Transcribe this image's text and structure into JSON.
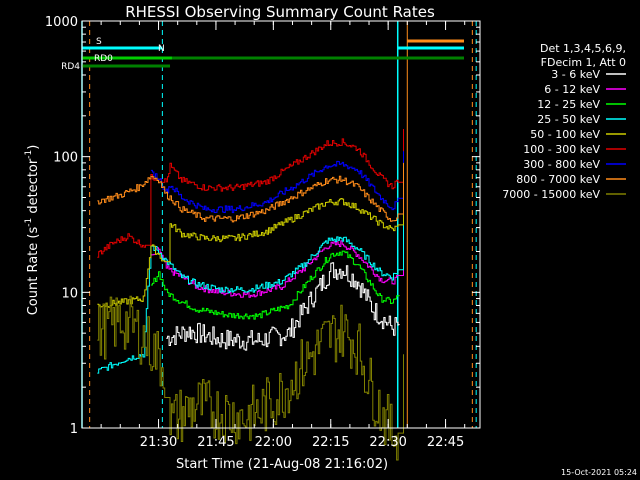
{
  "chart_data": {
    "type": "line",
    "title": "RHESSI Observing Summary Count Rates",
    "xlabel": "Start Time (21-Aug-08 21:16:02)",
    "ylabel_main": "Count Rate (s",
    "ylabel_sup1": "-1",
    "ylabel_mid": " detector",
    "ylabel_sup2": "-1",
    "ylabel_end": ")",
    "yscale": "log",
    "ylim": [
      1,
      1000
    ],
    "xlim_minutes": [
      -6,
      98
    ],
    "x_ticks": [
      {
        "label": "21:30",
        "m": 14
      },
      {
        "label": "21:45",
        "m": 29
      },
      {
        "label": "22:00",
        "m": 44
      },
      {
        "label": "22:15",
        "m": 59
      },
      {
        "label": "22:30",
        "m": 74
      },
      {
        "label": "22:45",
        "m": 89
      }
    ],
    "y_ticks": [
      {
        "label": "1",
        "v": 1
      },
      {
        "label": "10",
        "v": 10
      },
      {
        "label": "100",
        "v": 100
      },
      {
        "label": "1000",
        "v": 1000
      }
    ],
    "legend_header": [
      "Det 1,3,4,5,6,9,",
      "FDecim 1, Att 0"
    ],
    "timestamp": "15-Oct-2021 05:24",
    "flags": [
      {
        "name": "S",
        "color": "#ff8c1a"
      },
      {
        "name": "N",
        "color": "#00ffff"
      },
      {
        "name": "RD0",
        "color": "#00cc00"
      },
      {
        "name": "RD4",
        "color": "#008000"
      }
    ],
    "series": [
      {
        "name": "3 - 6 keV",
        "color": "#ffffff",
        "points": [
          [
            16,
            4.6
          ],
          [
            22,
            5.2
          ],
          [
            30,
            4.5
          ],
          [
            40,
            4.4
          ],
          [
            48,
            5.0
          ],
          [
            54,
            9.0
          ],
          [
            59,
            14.5
          ],
          [
            62,
            15.0
          ],
          [
            66,
            12.0
          ],
          [
            70,
            7.5
          ],
          [
            75,
            5.5
          ],
          [
            77,
            5.8
          ]
        ]
      },
      {
        "name": "6 - 12 keV",
        "color": "#ff00ff",
        "points": [
          [
            12,
            18
          ],
          [
            14,
            21
          ],
          [
            16,
            15
          ],
          [
            20,
            13
          ],
          [
            24,
            11
          ],
          [
            30,
            10
          ],
          [
            38,
            9.6
          ],
          [
            46,
            11
          ],
          [
            52,
            15
          ],
          [
            58,
            22
          ],
          [
            62,
            23
          ],
          [
            66,
            19
          ],
          [
            72,
            12.5
          ],
          [
            75,
            12
          ],
          [
            77,
            13
          ],
          [
            78,
            70
          ]
        ]
      },
      {
        "name": "12 - 25 keV",
        "color": "#00ff00",
        "points": [
          [
            12,
            11
          ],
          [
            14,
            14
          ],
          [
            16,
            10
          ],
          [
            20,
            8.5
          ],
          [
            24,
            7.5
          ],
          [
            32,
            6.8
          ],
          [
            40,
            6.7
          ],
          [
            48,
            8.0
          ],
          [
            54,
            13
          ],
          [
            59,
            19
          ],
          [
            62,
            20
          ],
          [
            66,
            16
          ],
          [
            72,
            9
          ],
          [
            75,
            8.5
          ],
          [
            77,
            9.5
          ]
        ]
      },
      {
        "name": "25 - 50 keV",
        "color": "#00ffff",
        "points": [
          [
            -2,
            2.6
          ],
          [
            5,
            3.2
          ],
          [
            10,
            3.5
          ],
          [
            12,
            22
          ],
          [
            14,
            20
          ],
          [
            16,
            17
          ],
          [
            20,
            13
          ],
          [
            24,
            11.5
          ],
          [
            30,
            10.5
          ],
          [
            38,
            10.5
          ],
          [
            46,
            12
          ],
          [
            52,
            16
          ],
          [
            58,
            24
          ],
          [
            62,
            25
          ],
          [
            66,
            21
          ],
          [
            72,
            14
          ],
          [
            75,
            13
          ],
          [
            77,
            15
          ],
          [
            78,
            110
          ]
        ]
      },
      {
        "name": "50 - 100 keV",
        "color": "#cccc00",
        "points": [
          [
            -2,
            8
          ],
          [
            5,
            8.5
          ],
          [
            10,
            9
          ],
          [
            12,
            22
          ],
          [
            14,
            19
          ],
          [
            16,
            16
          ],
          [
            17,
            32
          ],
          [
            20,
            27
          ],
          [
            26,
            25
          ],
          [
            34,
            25
          ],
          [
            42,
            28
          ],
          [
            50,
            36
          ],
          [
            58,
            46
          ],
          [
            62,
            47
          ],
          [
            66,
            42
          ],
          [
            72,
            32
          ],
          [
            75,
            29
          ],
          [
            77,
            31
          ],
          [
            78,
            80
          ]
        ]
      },
      {
        "name": "100 - 300 keV",
        "color": "#e00000",
        "points": [
          [
            -2,
            19
          ],
          [
            2,
            23
          ],
          [
            6,
            26
          ],
          [
            9,
            23
          ],
          [
            11,
            22
          ],
          [
            12,
            70
          ],
          [
            14,
            70
          ],
          [
            16,
            65
          ],
          [
            17,
            85
          ],
          [
            20,
            67
          ],
          [
            26,
            59
          ],
          [
            34,
            59
          ],
          [
            42,
            65
          ],
          [
            50,
            90
          ],
          [
            58,
            125
          ],
          [
            62,
            128
          ],
          [
            66,
            115
          ],
          [
            72,
            70
          ],
          [
            75,
            60
          ],
          [
            77,
            70
          ],
          [
            78,
            160
          ]
        ]
      },
      {
        "name": "300 - 800 keV",
        "color": "#0000ff",
        "points": [
          [
            12,
            75
          ],
          [
            14,
            70
          ],
          [
            16,
            55
          ],
          [
            17,
            62
          ],
          [
            20,
            50
          ],
          [
            26,
            41
          ],
          [
            34,
            41
          ],
          [
            42,
            46
          ],
          [
            50,
            62
          ],
          [
            58,
            86
          ],
          [
            62,
            88
          ],
          [
            66,
            80
          ],
          [
            72,
            50
          ],
          [
            75,
            42
          ],
          [
            77,
            48
          ],
          [
            78,
            110
          ]
        ]
      },
      {
        "name": "800 - 7000 keV",
        "color": "#ff8c1a",
        "points": [
          [
            -2,
            47
          ],
          [
            4,
            52
          ],
          [
            9,
            60
          ],
          [
            12,
            72
          ],
          [
            14,
            68
          ],
          [
            16,
            52
          ],
          [
            17,
            50
          ],
          [
            20,
            41
          ],
          [
            26,
            35
          ],
          [
            34,
            35
          ],
          [
            42,
            40
          ],
          [
            50,
            52
          ],
          [
            58,
            67
          ],
          [
            62,
            68
          ],
          [
            66,
            60
          ],
          [
            72,
            40
          ],
          [
            75,
            34
          ],
          [
            77,
            38
          ],
          [
            78,
            90
          ]
        ]
      },
      {
        "name": "7000 - 15000 keV",
        "color": "#808000",
        "points": [
          [
            -2,
            5.0
          ],
          [
            4,
            6.2
          ],
          [
            8,
            5.4
          ],
          [
            10,
            4.6
          ],
          [
            12,
            4.0
          ],
          [
            14,
            3.3
          ],
          [
            16,
            2.4
          ],
          [
            17,
            1.1
          ],
          [
            24,
            1.5
          ],
          [
            30,
            1.3
          ],
          [
            36,
            1.2
          ],
          [
            40,
            1.3
          ],
          [
            46,
            1.8
          ],
          [
            52,
            3.0
          ],
          [
            58,
            4.6
          ],
          [
            62,
            5.3
          ],
          [
            66,
            4.0
          ],
          [
            70,
            1.8
          ],
          [
            73,
            1.2
          ],
          [
            75,
            0.9
          ],
          [
            77,
            1.0
          ],
          [
            78,
            3.5
          ]
        ]
      }
    ]
  }
}
